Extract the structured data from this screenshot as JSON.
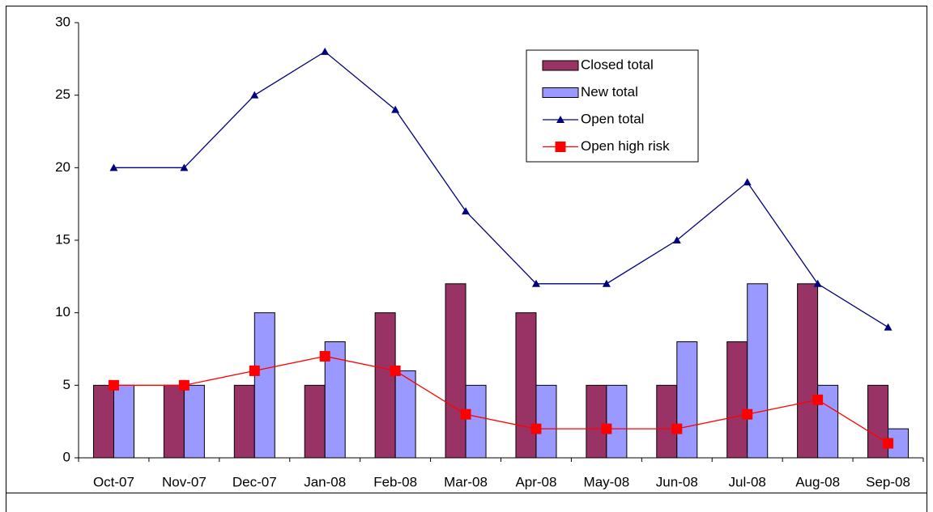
{
  "chart_data": {
    "type": "bar",
    "categories": [
      "Oct-07",
      "Nov-07",
      "Dec-07",
      "Jan-08",
      "Feb-08",
      "Mar-08",
      "Apr-08",
      "May-08",
      "Jun-08",
      "Jul-08",
      "Aug-08",
      "Sep-08"
    ],
    "series": [
      {
        "name": "Closed total",
        "type": "bar",
        "color": "#993366",
        "values": [
          5,
          5,
          5,
          5,
          10,
          12,
          10,
          5,
          5,
          8,
          12,
          5
        ]
      },
      {
        "name": "New total",
        "type": "bar",
        "color": "#9999ff",
        "values": [
          5,
          5,
          10,
          8,
          6,
          5,
          5,
          5,
          8,
          12,
          5,
          2
        ]
      },
      {
        "name": "Open total",
        "type": "line",
        "marker": "triangle",
        "color": "#000080",
        "values": [
          20,
          20,
          25,
          28,
          24,
          17,
          12,
          12,
          15,
          19,
          12,
          9
        ]
      },
      {
        "name": "Open high risk",
        "type": "line",
        "marker": "square",
        "color": "#ff0000",
        "values": [
          5,
          5,
          6,
          7,
          6,
          3,
          2,
          2,
          2,
          3,
          4,
          1
        ]
      }
    ],
    "ylim": [
      0,
      30
    ],
    "yticks": [
      0,
      5,
      10,
      15,
      20,
      25,
      30
    ],
    "grid": false,
    "legend": "upper right"
  }
}
